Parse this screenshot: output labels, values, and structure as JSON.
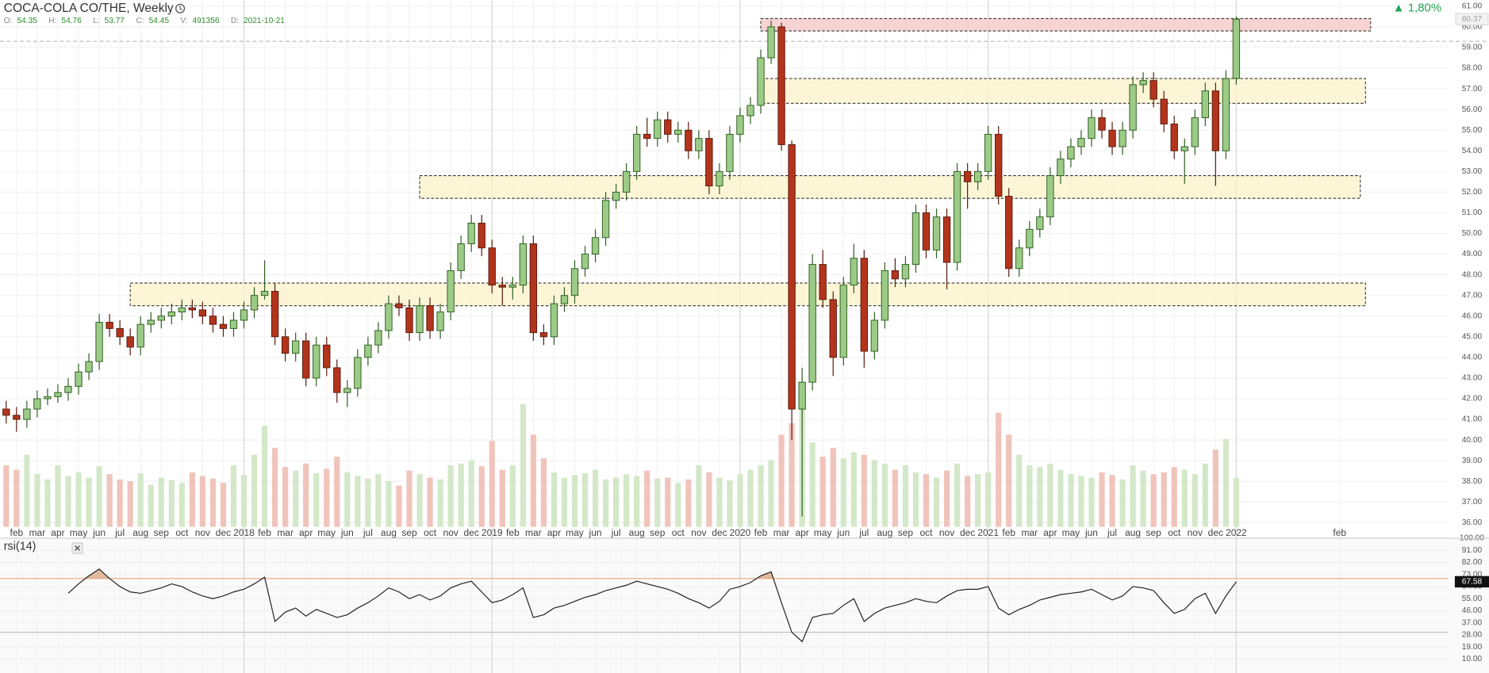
{
  "chart_data": {
    "type": "candlestick",
    "title": "COCA-COLA CO/THE, Weekly",
    "info": [
      {
        "label": "O:",
        "value": 54.35
      },
      {
        "label": "H:",
        "value": 54.76
      },
      {
        "label": "L:",
        "value": 53.77
      },
      {
        "label": "C:",
        "value": 54.45
      },
      {
        "label": "V:",
        "value": 491356
      },
      {
        "label": "D:",
        "value": "2021-10-21"
      }
    ],
    "change": "▲ 1,80%",
    "change_color": "#23a455",
    "categories": [
      null,
      "feb",
      null,
      "mar",
      null,
      "apr",
      null,
      "may",
      null,
      "jun",
      null,
      "jul",
      null,
      "aug",
      null,
      "sep",
      null,
      "oct",
      null,
      "nov",
      null,
      "dec",
      null,
      "2018",
      null,
      "feb",
      null,
      "mar",
      null,
      "apr",
      null,
      "may",
      null,
      "jun",
      null,
      "jul",
      null,
      "aug",
      null,
      "sep",
      null,
      "oct",
      null,
      "nov",
      null,
      "dec",
      null,
      "2019",
      null,
      "feb",
      null,
      "mar",
      null,
      "apr",
      null,
      "may",
      null,
      "jun",
      null,
      "jul",
      null,
      "aug",
      null,
      "sep",
      null,
      "oct",
      null,
      "nov",
      null,
      "dec",
      null,
      "2020",
      null,
      "feb",
      null,
      "mar",
      null,
      "apr",
      null,
      "may",
      null,
      "jun",
      null,
      "jul",
      null,
      "aug",
      null,
      "sep",
      null,
      "oct",
      null,
      "nov",
      null,
      "dec",
      null,
      "2021",
      null,
      "feb",
      null,
      "mar",
      null,
      "apr",
      null,
      "may",
      null,
      "jun",
      null,
      "jul",
      null,
      "aug",
      null,
      "sep",
      null,
      "oct",
      null,
      "nov",
      null,
      "dec",
      null,
      "2022",
      null,
      null,
      null,
      null,
      null,
      null,
      null,
      null,
      null,
      "feb"
    ],
    "ohlc": [
      [
        41.5,
        41.9,
        40.8,
        41.2
      ],
      [
        41.2,
        41.6,
        40.4,
        41.0
      ],
      [
        41.0,
        41.9,
        40.6,
        41.5
      ],
      [
        41.5,
        42.4,
        41.1,
        42.0
      ],
      [
        42.0,
        42.5,
        41.7,
        42.1
      ],
      [
        42.1,
        42.7,
        41.8,
        42.3
      ],
      [
        42.3,
        43.0,
        41.9,
        42.6
      ],
      [
        42.6,
        43.7,
        42.2,
        43.3
      ],
      [
        43.3,
        44.2,
        42.9,
        43.8
      ],
      [
        43.8,
        46.1,
        43.4,
        45.7
      ],
      [
        45.7,
        46.1,
        45.0,
        45.4
      ],
      [
        45.4,
        45.8,
        44.6,
        45.0
      ],
      [
        45.0,
        45.4,
        44.1,
        44.5
      ],
      [
        44.5,
        46.0,
        44.1,
        45.6
      ],
      [
        45.6,
        46.2,
        45.2,
        45.8
      ],
      [
        45.8,
        46.4,
        45.4,
        46.0
      ],
      [
        46.0,
        46.6,
        45.6,
        46.2
      ],
      [
        46.2,
        46.8,
        45.8,
        46.4
      ],
      [
        46.4,
        46.8,
        45.9,
        46.3
      ],
      [
        46.3,
        46.7,
        45.6,
        46.0
      ],
      [
        46.0,
        46.4,
        45.2,
        45.6
      ],
      [
        45.6,
        46.0,
        45.0,
        45.4
      ],
      [
        45.4,
        46.2,
        45.0,
        45.8
      ],
      [
        45.8,
        46.7,
        45.4,
        46.3
      ],
      [
        46.3,
        47.4,
        45.9,
        47.0
      ],
      [
        47.0,
        48.7,
        46.8,
        47.2
      ],
      [
        47.2,
        47.6,
        44.6,
        45.0
      ],
      [
        45.0,
        45.4,
        43.8,
        44.2
      ],
      [
        44.2,
        45.2,
        43.8,
        44.8
      ],
      [
        44.8,
        45.2,
        42.6,
        43.0
      ],
      [
        43.0,
        45.0,
        42.6,
        44.6
      ],
      [
        44.6,
        45.0,
        43.1,
        43.5
      ],
      [
        43.5,
        43.9,
        41.8,
        42.3
      ],
      [
        42.3,
        42.9,
        41.6,
        42.5
      ],
      [
        42.5,
        44.4,
        42.1,
        44.0
      ],
      [
        44.0,
        45.0,
        43.6,
        44.6
      ],
      [
        44.6,
        45.7,
        44.2,
        45.3
      ],
      [
        45.3,
        47.0,
        44.9,
        46.6
      ],
      [
        46.6,
        47.0,
        46.0,
        46.4
      ],
      [
        46.4,
        46.8,
        44.8,
        45.2
      ],
      [
        45.2,
        46.9,
        44.8,
        46.5
      ],
      [
        46.5,
        46.9,
        44.9,
        45.3
      ],
      [
        45.3,
        46.6,
        44.9,
        46.2
      ],
      [
        46.2,
        48.6,
        45.8,
        48.2
      ],
      [
        48.2,
        49.9,
        47.8,
        49.5
      ],
      [
        49.5,
        50.9,
        49.1,
        50.5
      ],
      [
        50.5,
        50.9,
        48.9,
        49.3
      ],
      [
        49.3,
        49.7,
        47.1,
        47.5
      ],
      [
        47.5,
        47.9,
        46.5,
        47.4
      ],
      [
        47.4,
        47.9,
        46.8,
        47.5
      ],
      [
        47.5,
        49.9,
        47.1,
        49.5
      ],
      [
        49.5,
        49.9,
        44.8,
        45.2
      ],
      [
        45.2,
        45.6,
        44.6,
        45.0
      ],
      [
        45.0,
        47.0,
        44.6,
        46.6
      ],
      [
        46.6,
        47.4,
        46.2,
        47.0
      ],
      [
        47.0,
        48.7,
        46.6,
        48.3
      ],
      [
        48.3,
        49.4,
        47.9,
        49.0
      ],
      [
        49.0,
        50.2,
        48.6,
        49.8
      ],
      [
        49.8,
        52.0,
        49.4,
        51.6
      ],
      [
        51.6,
        52.4,
        51.2,
        52.0
      ],
      [
        52.0,
        53.4,
        51.6,
        53.0
      ],
      [
        53.0,
        55.2,
        52.6,
        54.8
      ],
      [
        54.8,
        55.6,
        54.2,
        54.6
      ],
      [
        54.6,
        55.9,
        54.2,
        55.5
      ],
      [
        55.5,
        55.9,
        54.4,
        54.8
      ],
      [
        54.8,
        55.4,
        54.4,
        55.0
      ],
      [
        55.0,
        55.4,
        53.6,
        54.0
      ],
      [
        54.0,
        55.0,
        53.6,
        54.6
      ],
      [
        54.6,
        55.0,
        51.9,
        52.3
      ],
      [
        52.3,
        53.4,
        51.9,
        53.0
      ],
      [
        53.0,
        55.2,
        52.6,
        54.8
      ],
      [
        54.8,
        56.1,
        54.4,
        55.7
      ],
      [
        55.7,
        56.6,
        55.3,
        56.2
      ],
      [
        56.2,
        58.9,
        55.8,
        58.5
      ],
      [
        58.5,
        60.3,
        58.2,
        60.0
      ],
      [
        60.0,
        60.2,
        54.0,
        54.3
      ],
      [
        54.3,
        54.5,
        40.0,
        41.5
      ],
      [
        41.5,
        43.5,
        36.3,
        42.8
      ],
      [
        42.8,
        49.0,
        42.4,
        48.5
      ],
      [
        48.5,
        49.2,
        46.4,
        46.8
      ],
      [
        46.8,
        47.2,
        43.1,
        44.0
      ],
      [
        44.0,
        47.9,
        43.6,
        47.5
      ],
      [
        47.5,
        49.5,
        47.1,
        48.8
      ],
      [
        48.8,
        49.2,
        43.5,
        44.3
      ],
      [
        44.3,
        46.2,
        43.9,
        45.8
      ],
      [
        45.8,
        48.6,
        45.4,
        48.2
      ],
      [
        48.2,
        48.8,
        47.4,
        47.8
      ],
      [
        47.8,
        48.9,
        47.4,
        48.5
      ],
      [
        48.5,
        51.4,
        48.1,
        51.0
      ],
      [
        51.0,
        51.4,
        48.8,
        49.2
      ],
      [
        49.2,
        51.2,
        48.8,
        50.8
      ],
      [
        50.8,
        51.2,
        47.3,
        48.6
      ],
      [
        48.6,
        53.4,
        48.2,
        53.0
      ],
      [
        53.0,
        53.4,
        51.2,
        52.5
      ],
      [
        52.5,
        53.4,
        52.1,
        53.0
      ],
      [
        53.0,
        55.2,
        52.6,
        54.8
      ],
      [
        54.8,
        55.2,
        51.4,
        51.8
      ],
      [
        51.8,
        52.2,
        47.9,
        48.3
      ],
      [
        48.3,
        49.7,
        47.9,
        49.3
      ],
      [
        49.3,
        50.6,
        48.9,
        50.2
      ],
      [
        50.2,
        51.2,
        49.8,
        50.8
      ],
      [
        50.8,
        53.2,
        50.4,
        52.8
      ],
      [
        52.8,
        54.0,
        52.4,
        53.6
      ],
      [
        53.6,
        54.6,
        53.2,
        54.2
      ],
      [
        54.2,
        55.0,
        53.8,
        54.6
      ],
      [
        54.6,
        56.0,
        54.2,
        55.6
      ],
      [
        55.6,
        56.0,
        54.6,
        55.0
      ],
      [
        55.0,
        55.4,
        53.8,
        54.2
      ],
      [
        54.2,
        55.4,
        53.8,
        55.0
      ],
      [
        55.0,
        57.6,
        54.6,
        57.2
      ],
      [
        57.2,
        57.8,
        56.8,
        57.4
      ],
      [
        57.4,
        57.8,
        56.1,
        56.5
      ],
      [
        56.5,
        56.9,
        54.9,
        55.3
      ],
      [
        55.3,
        55.7,
        53.6,
        54.0
      ],
      [
        54.0,
        54.6,
        52.4,
        54.2
      ],
      [
        54.2,
        56.0,
        53.8,
        55.6
      ],
      [
        55.6,
        57.3,
        55.2,
        56.9
      ],
      [
        56.9,
        57.3,
        52.3,
        54.0
      ],
      [
        54.0,
        57.9,
        53.6,
        57.5
      ],
      [
        57.5,
        60.5,
        57.2,
        60.37
      ],
      null,
      null,
      null,
      null,
      null,
      null,
      null,
      null,
      null,
      null
    ],
    "volume": [
      700000,
      650000,
      820000,
      600000,
      540000,
      700000,
      580000,
      620000,
      560000,
      690000,
      600000,
      540000,
      520000,
      610000,
      480000,
      560000,
      530000,
      500000,
      620000,
      580000,
      550000,
      500000,
      700000,
      590000,
      820000,
      1150000,
      900000,
      680000,
      640000,
      720000,
      610000,
      660000,
      800000,
      620000,
      580000,
      550000,
      600000,
      520000,
      470000,
      640000,
      600000,
      560000,
      540000,
      700000,
      720000,
      760000,
      690000,
      980000,
      650000,
      700000,
      1400000,
      1050000,
      780000,
      620000,
      560000,
      590000,
      610000,
      650000,
      540000,
      560000,
      600000,
      580000,
      640000,
      550000,
      560000,
      500000,
      540000,
      700000,
      620000,
      560000,
      530000,
      600000,
      650000,
      700000,
      760000,
      1050000,
      1180000,
      1350000,
      960000,
      800000,
      900000,
      780000,
      850000,
      820000,
      760000,
      720000,
      650000,
      700000,
      620000,
      600000,
      560000,
      640000,
      720000,
      580000,
      600000,
      620000,
      1300000,
      1050000,
      820000,
      700000,
      680000,
      720000,
      650000,
      600000,
      580000,
      560000,
      620000,
      590000,
      540000,
      700000,
      640000,
      600000,
      620000,
      680000,
      650000,
      600000,
      720000,
      880000,
      1000000,
      560000,
      null,
      null,
      null,
      null,
      null,
      null,
      null,
      null,
      null,
      null
    ],
    "up_color": "#9bcb86",
    "down_color": "#b3341c",
    "up_border": "#2f5e22",
    "down_border": "#5a1a0e",
    "volume_up_color": "#d3e8c8",
    "volume_down_color": "#f0c4bb",
    "xlim": [
      -0.6,
      139.5
    ],
    "ylim": [
      35.8,
      61.3
    ],
    "vlim": [
      0,
      6000000
    ],
    "yticks": [
      {
        "value": 36,
        "label": "36.00"
      },
      {
        "value": 37,
        "label": "37.00"
      },
      {
        "value": 38,
        "label": "38.00"
      },
      {
        "value": 39,
        "label": "39.00"
      },
      {
        "value": 40,
        "label": "40.00"
      },
      {
        "value": 41,
        "label": "41.00"
      },
      {
        "value": 42,
        "label": "42.00"
      },
      {
        "value": 43,
        "label": "43.00"
      },
      {
        "value": 44,
        "label": "44.00"
      },
      {
        "value": 45,
        "label": "45.00"
      },
      {
        "value": 46,
        "label": "46.00"
      },
      {
        "value": 47,
        "label": "47.00"
      },
      {
        "value": 48,
        "label": "48.00"
      },
      {
        "value": 49,
        "label": "49.00"
      },
      {
        "value": 50,
        "label": "50.00"
      },
      {
        "value": 51,
        "label": "51.00"
      },
      {
        "value": 52,
        "label": "52.00"
      },
      {
        "value": 53,
        "label": "53.00"
      },
      {
        "value": 54,
        "label": "54.00"
      },
      {
        "value": 55,
        "label": "55.00"
      },
      {
        "value": 56,
        "label": "56.00"
      },
      {
        "value": 57,
        "label": "57.00"
      },
      {
        "value": 58,
        "label": "58.00"
      },
      {
        "value": 59,
        "label": "59.00"
      },
      {
        "value": 60,
        "label": "60.00"
      },
      {
        "value": 61,
        "label": "61.00"
      }
    ],
    "grid": true,
    "ref_line": 59.3,
    "zones": [
      {
        "low": 59.8,
        "high": 60.4,
        "from": 73,
        "to": 132,
        "color": "#f5c4c4"
      },
      {
        "low": 56.3,
        "high": 57.5,
        "from": 73,
        "to": 131.5,
        "color": "#fbf3c8"
      },
      {
        "low": 51.7,
        "high": 52.8,
        "from": 40,
        "to": 131,
        "color": "#fbf3c8"
      },
      {
        "low": 46.5,
        "high": 47.6,
        "from": 12,
        "to": 131.5,
        "color": "#fbf3c8"
      }
    ],
    "rsi": {
      "title": "rsi(14)",
      "color": "#222222",
      "ylim": [
        0,
        100
      ],
      "yticks": [
        {
          "value": 100,
          "label": "100.00"
        },
        {
          "value": 91,
          "label": "91.00"
        },
        {
          "value": 82,
          "label": "82.00"
        },
        {
          "value": 73,
          "label": "73.00"
        },
        {
          "value": 64,
          "label": "64.00"
        },
        {
          "value": 55,
          "label": "55.00"
        },
        {
          "value": 46,
          "label": "46.00"
        },
        {
          "value": 37,
          "label": "37.00"
        },
        {
          "value": 28,
          "label": "28.00"
        },
        {
          "value": 19,
          "label": "19.00"
        },
        {
          "value": 10,
          "label": "10.00"
        }
      ],
      "bands": [
        70,
        30
      ],
      "band_colors": [
        "#eaa57a",
        "#bbbbbb"
      ],
      "values": [
        null,
        null,
        null,
        null,
        null,
        null,
        59,
        66,
        72,
        77,
        70,
        64,
        60,
        59,
        61,
        63,
        66,
        64,
        60,
        57,
        55,
        57,
        60,
        62,
        66,
        71,
        38,
        45,
        48,
        42,
        47,
        44,
        41,
        43,
        48,
        52,
        57,
        63,
        60,
        55,
        58,
        54,
        57,
        63,
        66,
        68,
        60,
        52,
        54,
        58,
        63,
        41,
        43,
        48,
        50,
        53,
        56,
        58,
        61,
        63,
        65,
        68,
        66,
        64,
        62,
        59,
        55,
        52,
        48,
        53,
        62,
        64,
        67,
        72,
        75,
        52,
        30,
        23,
        41,
        43,
        44,
        50,
        55,
        38,
        44,
        48,
        50,
        52,
        55,
        53,
        52,
        57,
        61,
        62,
        62,
        64,
        48,
        43,
        47,
        50,
        54,
        56,
        58,
        59,
        60,
        62,
        58,
        54,
        57,
        64,
        63,
        61,
        52,
        44,
        47,
        55,
        59,
        44,
        57,
        67.58,
        null,
        null,
        null,
        null,
        null,
        null,
        null,
        null,
        null,
        null
      ]
    }
  }
}
